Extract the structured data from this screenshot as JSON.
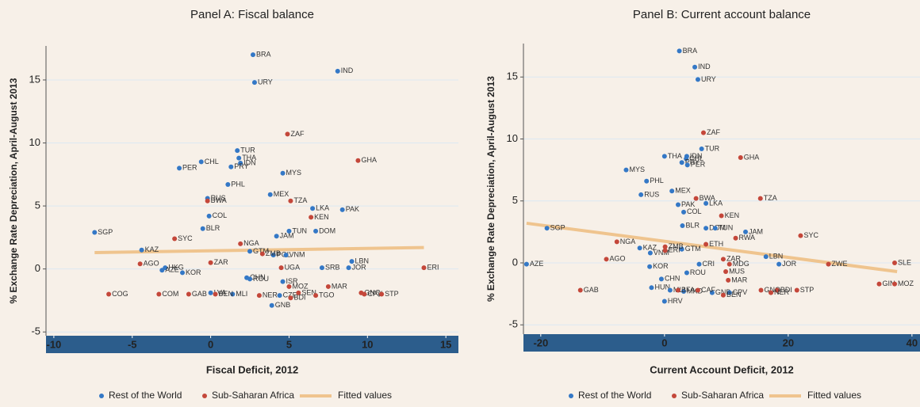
{
  "chart_data": [
    {
      "type": "scatter",
      "title": "Panel A: Fiscal balance",
      "xlabel": "Fiscal Deficit, 2012",
      "ylabel": "% Exchange Rate Depreciation, April-August 2013",
      "xlim": [
        -10.5,
        15.8
      ],
      "ylim": [
        -5.3,
        17.7
      ],
      "xticks": [
        -10,
        -5,
        0,
        5,
        10,
        15
      ],
      "yticks": [
        -5,
        0,
        5,
        10,
        15
      ],
      "grid": true,
      "legend": "bottom",
      "series": [
        {
          "name": "Rest of the World",
          "color": "#3478c6",
          "labels": [
            "BRA",
            "IND",
            "URY",
            "TUR",
            "THA",
            "IDN",
            "CHL",
            "PER",
            "PRY",
            "MYS",
            "PHL",
            "RUS",
            "MEX",
            "LKA",
            "PAK",
            "COL",
            "BLR",
            "SGP",
            "JAM",
            "TUN",
            "DOM",
            "KAZ",
            "GTM",
            "POL",
            "VNM",
            "LBN",
            "JOR",
            "SRB",
            "HKG",
            "AZE",
            "KOR",
            "CHN",
            "ROU",
            "ISR",
            "LVA",
            "MLI",
            "CZE",
            "GNB"
          ],
          "x": [
            2.7,
            8.1,
            2.8,
            1.7,
            1.8,
            1.9,
            -0.6,
            -2.0,
            1.3,
            4.6,
            1.1,
            -0.2,
            3.8,
            6.5,
            8.4,
            -0.1,
            -0.5,
            -7.4,
            4.2,
            5.0,
            6.7,
            -4.4,
            2.5,
            4.0,
            4.8,
            9.0,
            8.8,
            7.1,
            -2.9,
            -3.1,
            -1.8,
            2.3,
            2.5,
            4.6,
            0.0,
            1.4,
            4.4,
            3.9
          ],
          "values": [
            17.0,
            15.7,
            14.8,
            9.4,
            8.8,
            8.4,
            8.5,
            8.0,
            8.1,
            7.6,
            6.7,
            5.6,
            5.9,
            4.8,
            4.7,
            4.2,
            3.2,
            2.9,
            2.6,
            3.0,
            3.0,
            1.5,
            1.4,
            1.1,
            1.1,
            0.6,
            0.1,
            0.1,
            0.1,
            -0.1,
            -0.3,
            -0.7,
            -0.8,
            -1.0,
            -1.9,
            -2.0,
            -2.1,
            -2.9
          ]
        },
        {
          "name": "Sub-Saharan Africa",
          "color": "#c4473a",
          "labels": [
            "ZAF",
            "GHA",
            "TZA",
            "KEN",
            "BWA",
            "SYC",
            "NGA",
            "ZMB",
            "ZAR",
            "AGO",
            "UGA",
            "MOZ",
            "SEN",
            "MAR",
            "TGO",
            "GNQ",
            "CPV",
            "STP",
            "COG",
            "COM",
            "GAB",
            "BEN",
            "NER",
            "BDI",
            "ERI"
          ],
          "x": [
            4.9,
            9.4,
            5.1,
            6.4,
            -0.2,
            -2.3,
            1.9,
            3.3,
            0.0,
            -4.5,
            4.5,
            5.0,
            5.6,
            7.5,
            6.7,
            9.6,
            9.8,
            10.9,
            -6.5,
            -3.3,
            -1.4,
            0.3,
            3.1,
            5.1,
            13.6
          ],
          "values": [
            10.7,
            8.6,
            5.4,
            4.1,
            5.4,
            2.4,
            2.0,
            1.2,
            0.5,
            0.4,
            0.1,
            -1.4,
            -1.9,
            -1.4,
            -2.1,
            -1.9,
            -2.0,
            -2.0,
            -2.0,
            -2.0,
            -2.0,
            -2.0,
            -2.1,
            -2.3,
            0.1
          ]
        },
        {
          "name": "Fitted values",
          "color": "#efc48e",
          "type": "line",
          "x": [
            -7.4,
            13.6
          ],
          "values": [
            1.3,
            1.7
          ]
        }
      ]
    },
    {
      "type": "scatter",
      "title": "Panel B: Current account balance",
      "xlabel": "Current Account Deficit, 2012",
      "ylabel": "% Exchange Rate Depreciation, April-August 2013",
      "xlim": [
        -22.8,
        41.3
      ],
      "ylim": [
        -5.75,
        17.7
      ],
      "xticks": [
        -20,
        0,
        20,
        40
      ],
      "yticks": [
        -5,
        0,
        5,
        10,
        15
      ],
      "grid": true,
      "legend": "bottom",
      "series": [
        {
          "name": "Rest of the World",
          "color": "#3478c6",
          "labels": [
            "BRA",
            "IND",
            "URY",
            "TUR",
            "IDN",
            "THA",
            "CHL",
            "PRY",
            "PER",
            "MYS",
            "PHL",
            "MEX",
            "RUS",
            "LKA",
            "PAK",
            "COL",
            "DOM",
            "BLR",
            "TUN",
            "JAM",
            "SGP",
            "KAZ",
            "VNM",
            "GTM",
            "LBN",
            "JOR",
            "AZE",
            "KOR",
            "CHN",
            "CRI",
            "ROU",
            "HUN",
            "HRV",
            "MLI",
            "MKD",
            "GNB",
            "CPV"
          ],
          "x": [
            2.4,
            4.9,
            5.4,
            6.0,
            3.6,
            0.0,
            3.5,
            2.8,
            3.7,
            -6.2,
            -2.9,
            1.2,
            -3.8,
            6.7,
            2.2,
            3.1,
            6.7,
            2.9,
            8.2,
            13.1,
            -19.0,
            -4.0,
            -2.3,
            2.8,
            16.4,
            18.5,
            -22.3,
            -2.4,
            -0.5,
            5.6,
            3.6,
            -2.1,
            0.0,
            0.9,
            3.1,
            7.7,
            10.5
          ],
          "values": [
            17.1,
            15.8,
            14.8,
            9.2,
            8.6,
            8.6,
            8.4,
            8.1,
            7.9,
            7.5,
            6.6,
            5.8,
            5.5,
            4.8,
            4.7,
            4.1,
            2.8,
            3.0,
            2.8,
            2.5,
            2.8,
            1.2,
            0.8,
            1.1,
            0.5,
            -0.1,
            -0.1,
            -0.3,
            -1.3,
            -0.1,
            -0.8,
            -2.0,
            -3.1,
            -2.2,
            -2.3,
            -2.4,
            -2.4
          ]
        },
        {
          "name": "Sub-Saharan Africa",
          "color": "#c4473a",
          "labels": [
            "ZAF",
            "GHA",
            "TZA",
            "KEN",
            "BWA",
            "SYC",
            "ETH",
            "RWA",
            "NGA",
            "ZMB",
            "ERI",
            "AGO",
            "ZAR",
            "MDG",
            "ZWE",
            "SLE",
            "GIN",
            "MOZ",
            "MUS",
            "MAR",
            "GNQ",
            "BDI",
            "STP",
            "NER",
            "GAB",
            "BFA",
            "CAF",
            "BEN"
          ],
          "x": [
            6.3,
            12.3,
            15.5,
            9.2,
            5.1,
            22.0,
            6.7,
            11.5,
            -7.7,
            0.1,
            0.1,
            -9.4,
            9.5,
            10.5,
            26.5,
            37.2,
            34.7,
            37.2,
            9.9,
            10.3,
            15.6,
            18.2,
            21.4,
            17.2,
            -13.6,
            2.2,
            5.4,
            9.5
          ],
          "values": [
            10.5,
            8.5,
            5.2,
            3.8,
            5.2,
            2.2,
            1.5,
            2.0,
            1.7,
            1.3,
            1.0,
            0.3,
            0.3,
            -0.1,
            -0.1,
            0.0,
            -1.7,
            -1.7,
            -0.7,
            -1.4,
            -2.2,
            -2.2,
            -2.2,
            -2.4,
            -2.2,
            -2.2,
            -2.2,
            -2.6
          ]
        },
        {
          "name": "Fitted values",
          "color": "#efc48e",
          "type": "line",
          "x": [
            -22.3,
            37.6
          ],
          "values": [
            3.2,
            -0.7
          ]
        }
      ]
    }
  ]
}
